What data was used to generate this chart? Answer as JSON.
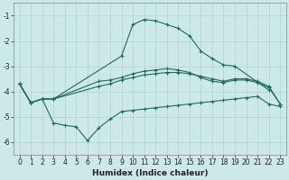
{
  "xlabel": "Humidex (Indice chaleur)",
  "background_color": "#cde8e8",
  "grid_color": "#b0d0d0",
  "line_color": "#1f6b5e",
  "xlim": [
    -0.5,
    23.5
  ],
  "ylim": [
    -6.5,
    -0.5
  ],
  "yticks": [
    -6,
    -5,
    -4,
    -3,
    -2,
    -1
  ],
  "xticks": [
    0,
    1,
    2,
    3,
    4,
    5,
    6,
    7,
    8,
    9,
    10,
    11,
    12,
    13,
    14,
    15,
    16,
    17,
    18,
    19,
    20,
    21,
    22,
    23
  ],
  "curve1_x": [
    0,
    1,
    2,
    3,
    9,
    10,
    11,
    12,
    13,
    14,
    15,
    16,
    17,
    18,
    19,
    22
  ],
  "curve1_y": [
    -3.7,
    -4.45,
    -4.3,
    -4.3,
    -2.6,
    -1.35,
    -1.15,
    -1.2,
    -1.35,
    -1.5,
    -1.8,
    -2.4,
    -2.7,
    -2.95,
    -3.0,
    -3.95
  ],
  "curve2_x": [
    0,
    1,
    2,
    3,
    7,
    8,
    9,
    10,
    11,
    12,
    13,
    14,
    15,
    16,
    17,
    18,
    19,
    20,
    21,
    22,
    23
  ],
  "curve2_y": [
    -3.7,
    -4.45,
    -4.3,
    -4.3,
    -3.6,
    -3.55,
    -3.45,
    -3.3,
    -3.2,
    -3.15,
    -3.1,
    -3.15,
    -3.25,
    -3.45,
    -3.6,
    -3.65,
    -3.55,
    -3.55,
    -3.65,
    -3.85,
    -4.5
  ],
  "curve3_x": [
    0,
    1,
    2,
    3,
    4,
    5,
    6,
    7,
    8,
    9,
    10,
    11,
    12,
    13,
    14,
    15,
    16,
    17,
    18,
    19,
    20,
    21,
    22,
    23
  ],
  "curve3_y": [
    -3.7,
    -4.45,
    -4.3,
    -5.25,
    -5.35,
    -5.4,
    -5.95,
    -5.45,
    -5.1,
    -4.8,
    -4.75,
    -4.7,
    -4.65,
    -4.6,
    -4.55,
    -4.5,
    -4.45,
    -4.4,
    -4.35,
    -4.3,
    -4.25,
    -4.2,
    -4.5,
    -4.6
  ],
  "curve4_x": [
    0,
    1,
    2,
    3,
    7,
    8,
    9,
    10,
    11,
    12,
    13,
    14,
    15,
    16,
    17,
    18,
    19,
    20,
    21,
    22,
    23
  ],
  "curve4_y": [
    -3.7,
    -4.45,
    -4.3,
    -4.3,
    -3.8,
    -3.7,
    -3.55,
    -3.45,
    -3.35,
    -3.3,
    -3.25,
    -3.25,
    -3.3,
    -3.4,
    -3.5,
    -3.6,
    -3.5,
    -3.5,
    -3.6,
    -3.8,
    -4.5
  ]
}
